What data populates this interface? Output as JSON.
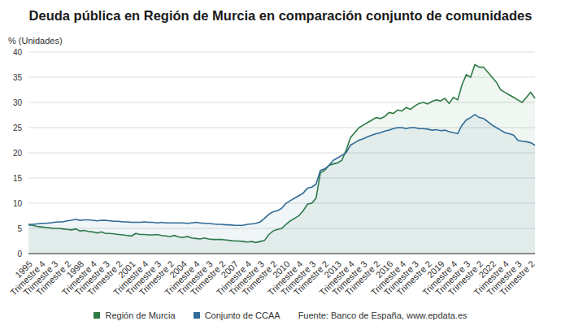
{
  "chart_data": {
    "type": "area",
    "title": "Deuda pública en Región de Murcia en comparación conjunto de comunidades",
    "y_label": "% (Unidades)",
    "source": "Fuente: Banco de España, www.epdata.es",
    "categories": [
      "1995",
      null,
      null,
      "Trimestre 4",
      null,
      null,
      "Trimestre 3",
      null,
      null,
      "Trimestre 2",
      null,
      null,
      "1998",
      null,
      null,
      "Trimestre 4",
      null,
      null,
      "Trimestre 3",
      null,
      null,
      "Trimestre 2",
      null,
      null,
      "2001",
      null,
      null,
      "Trimestre 4",
      null,
      null,
      "Trimestre 3",
      null,
      null,
      "Trimestre 2",
      null,
      null,
      "2004",
      null,
      null,
      "Trimestre 4",
      null,
      null,
      "Trimestre 3",
      null,
      null,
      "Trimestre 2",
      null,
      null,
      "2007",
      null,
      null,
      "Trimestre 4",
      null,
      null,
      "Trimestre 3",
      null,
      null,
      "Trimestre 2",
      null,
      null,
      "2010",
      null,
      null,
      "Trimestre 4",
      null,
      null,
      "Trimestre 3",
      null,
      null,
      "Trimestre 2",
      null,
      null,
      "2013",
      null,
      null,
      "Trimestre 4",
      null,
      null,
      "Trimestre 3",
      null,
      null,
      "Trimestre 2",
      null,
      null,
      "2016",
      null,
      null,
      "Trimestre 4",
      null,
      null,
      "Trimestre 3",
      null,
      null,
      "Trimestre 2",
      null,
      null,
      "2019",
      null,
      null,
      "Trimestre 4",
      null,
      null,
      "Trimestre 3",
      null,
      null,
      "Trimestre 2",
      null,
      null,
      "2022",
      null,
      null,
      "Trimestre 4",
      null,
      null,
      "Trimestre 3",
      null,
      null,
      "Trimestre 2",
      null
    ],
    "series": [
      {
        "name": "Región de Murcia",
        "color": "#2e7b45",
        "values": [
          5.7,
          5.6,
          5.4,
          5.3,
          5.2,
          5.1,
          5.0,
          5.0,
          4.9,
          4.8,
          4.7,
          4.9,
          4.5,
          4.6,
          4.4,
          4.3,
          4.1,
          4.3,
          4.0,
          4.0,
          3.9,
          3.8,
          3.7,
          3.6,
          3.5,
          4.0,
          3.8,
          3.8,
          3.7,
          3.7,
          3.8,
          3.6,
          3.5,
          3.4,
          3.6,
          3.3,
          3.2,
          3.4,
          3.1,
          3.0,
          2.9,
          3.1,
          2.9,
          2.8,
          2.8,
          2.8,
          2.7,
          2.6,
          2.5,
          2.5,
          2.4,
          2.3,
          2.4,
          2.2,
          2.4,
          2.6,
          3.8,
          4.5,
          4.8,
          5.0,
          5.8,
          6.5,
          7.0,
          7.5,
          8.5,
          9.8,
          10.0,
          11.0,
          16.0,
          16.5,
          17.5,
          17.8,
          18.0,
          18.5,
          20.5,
          23.0,
          24.0,
          25.0,
          25.5,
          26.0,
          26.5,
          27.0,
          26.8,
          27.2,
          28.0,
          27.8,
          28.5,
          28.3,
          29.0,
          28.6,
          29.3,
          29.8,
          30.0,
          29.7,
          30.2,
          30.5,
          30.3,
          30.8,
          29.8,
          31.0,
          30.5,
          33.5,
          35.5,
          35.0,
          37.5,
          37.0,
          37.0,
          36.0,
          35.0,
          34.0,
          32.5,
          32.0,
          31.5,
          31.0,
          30.5,
          30.0,
          31.0,
          32.0,
          30.8
        ]
      },
      {
        "name": "Conjunto de CCAA",
        "color": "#2f6b96",
        "values": [
          5.8,
          5.8,
          5.9,
          6.0,
          6.0,
          6.1,
          6.2,
          6.3,
          6.3,
          6.5,
          6.6,
          6.8,
          6.6,
          6.7,
          6.7,
          6.6,
          6.5,
          6.6,
          6.6,
          6.5,
          6.4,
          6.4,
          6.3,
          6.3,
          6.2,
          6.2,
          6.2,
          6.3,
          6.2,
          6.2,
          6.1,
          6.2,
          6.1,
          6.1,
          6.1,
          6.1,
          6.1,
          6.0,
          6.1,
          6.2,
          6.1,
          6.0,
          6.0,
          5.9,
          5.8,
          5.8,
          5.7,
          5.7,
          5.6,
          5.6,
          5.6,
          5.8,
          5.9,
          6.0,
          6.3,
          7.0,
          7.8,
          8.3,
          8.5,
          9.0,
          10.0,
          10.5,
          11.0,
          11.5,
          12.0,
          13.0,
          13.2,
          13.8,
          16.5,
          16.8,
          17.5,
          18.5,
          19.0,
          19.5,
          20.0,
          21.5,
          22.0,
          22.5,
          22.8,
          23.2,
          23.5,
          23.8,
          24.0,
          24.3,
          24.5,
          24.8,
          25.0,
          25.0,
          24.8,
          25.0,
          25.0,
          24.8,
          24.8,
          24.7,
          24.5,
          24.6,
          24.4,
          24.5,
          24.2,
          24.0,
          23.8,
          25.5,
          26.5,
          27.0,
          27.6,
          27.0,
          26.8,
          26.2,
          25.5,
          25.0,
          24.5,
          24.0,
          23.8,
          23.5,
          22.5,
          22.3,
          22.2,
          22.0,
          21.5
        ]
      }
    ],
    "ylim": [
      0,
      40
    ],
    "yticks": [
      0,
      5,
      10,
      15,
      20,
      25,
      30,
      35,
      40
    ],
    "grid": true,
    "legend": "bottom"
  }
}
